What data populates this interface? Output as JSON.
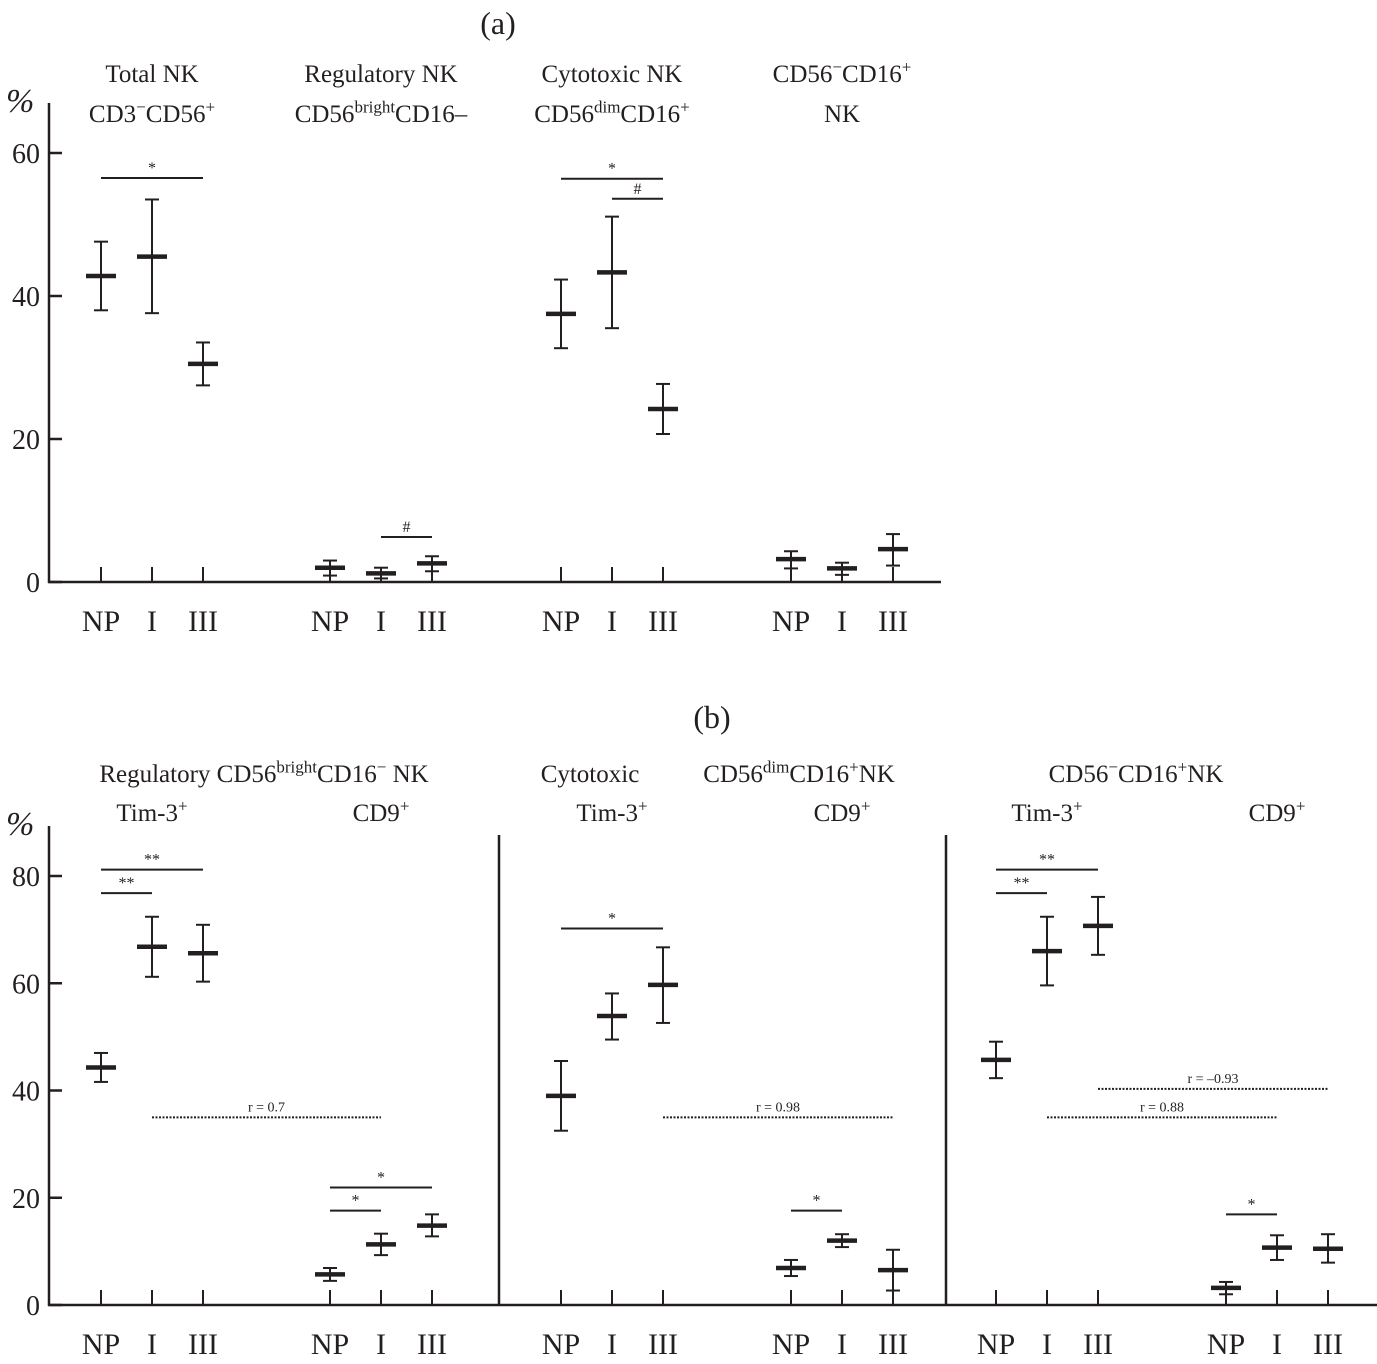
{
  "chart_data": [
    {
      "type": "errorbar",
      "panel_label": "(a)",
      "ylabel": "%",
      "ylim": [
        0,
        65
      ],
      "yticks": [
        0,
        20,
        40,
        60
      ],
      "categories": [
        "NP",
        "I",
        "III"
      ],
      "groups": [
        {
          "title_line1": "Total NK",
          "title_line2": {
            "parts": [
              {
                "t": "CD3"
              },
              {
                "t": "−",
                "sup": true
              },
              {
                "t": "CD56"
              },
              {
                "t": "+",
                "sup": true
              }
            ]
          },
          "points": [
            {
              "category": "NP",
              "mean": 42.8,
              "low": 38.0,
              "high": 47.6
            },
            {
              "category": "I",
              "mean": 45.5,
              "low": 37.6,
              "high": 53.5
            },
            {
              "category": "III",
              "mean": 30.5,
              "low": 27.5,
              "high": 33.5
            }
          ],
          "significance": [
            {
              "from": "NP",
              "to": "III",
              "label": "*",
              "y": 56.5
            }
          ]
        },
        {
          "title_line1": "Regulatory NK",
          "title_line2": {
            "parts": [
              {
                "t": "CD56"
              },
              {
                "t": "bright",
                "sup": true
              },
              {
                "t": "CD16–"
              }
            ]
          },
          "points": [
            {
              "category": "NP",
              "mean": 2.0,
              "low": 0.9,
              "high": 3.0
            },
            {
              "category": "I",
              "mean": 1.2,
              "low": 0.5,
              "high": 2.0
            },
            {
              "category": "III",
              "mean": 2.6,
              "low": 1.5,
              "high": 3.6
            }
          ],
          "significance": [
            {
              "from": "I",
              "to": "III",
              "label": "#",
              "y": 6.3
            }
          ]
        },
        {
          "title_line1": "Cytotoxic NK",
          "title_line2": {
            "parts": [
              {
                "t": "CD56"
              },
              {
                "t": "dim",
                "sup": true
              },
              {
                "t": "CD16"
              },
              {
                "t": "+",
                "sup": true
              }
            ]
          },
          "points": [
            {
              "category": "NP",
              "mean": 37.5,
              "low": 32.7,
              "high": 42.3
            },
            {
              "category": "I",
              "mean": 43.3,
              "low": 35.5,
              "high": 51.1
            },
            {
              "category": "III",
              "mean": 24.2,
              "low": 20.7,
              "high": 27.7
            }
          ],
          "significance": [
            {
              "from": "NP",
              "to": "III",
              "label": "*",
              "y": 56.4
            },
            {
              "from": "I",
              "to": "III",
              "label": "#",
              "y": 53.6
            }
          ]
        },
        {
          "title_line1": {
            "parts": [
              {
                "t": "CD56"
              },
              {
                "t": "−",
                "sup": true
              },
              {
                "t": "CD16"
              },
              {
                "t": "+",
                "sup": true
              }
            ]
          },
          "title_line2": "NK",
          "points": [
            {
              "category": "NP",
              "mean": 3.2,
              "low": 1.9,
              "high": 4.3
            },
            {
              "category": "I",
              "mean": 1.9,
              "low": 1.0,
              "high": 2.7
            },
            {
              "category": "III",
              "mean": 4.6,
              "low": 2.3,
              "high": 6.7
            }
          ],
          "significance": []
        }
      ]
    },
    {
      "type": "errorbar",
      "panel_label": "(b)",
      "ylabel": "%",
      "ylim": [
        0,
        89
      ],
      "yticks": [
        0,
        20,
        40,
        60,
        80
      ],
      "categories": [
        "NP",
        "I",
        "III"
      ],
      "sections": [
        {
          "title": {
            "parts": [
              {
                "t": "Regulatory CD56"
              },
              {
                "t": "bright",
                "sup": true
              },
              {
                "t": "CD16"
              },
              {
                "t": "−",
                "sup": true
              },
              {
                "t": " NK"
              }
            ]
          },
          "subgroups": [
            {
              "label": {
                "parts": [
                  {
                    "t": "Tim-3"
                  },
                  {
                    "t": "+",
                    "sup": true
                  }
                ]
              },
              "points": [
                {
                  "category": "NP",
                  "mean": 44.3,
                  "low": 41.6,
                  "high": 47.0
                },
                {
                  "category": "I",
                  "mean": 66.8,
                  "low": 61.2,
                  "high": 72.4
                },
                {
                  "category": "III",
                  "mean": 65.6,
                  "low": 60.3,
                  "high": 70.9
                }
              ],
              "significance": [
                {
                  "from": "NP",
                  "to": "III",
                  "label": "**",
                  "y": 81.2
                },
                {
                  "from": "NP",
                  "to": "I",
                  "label": "**",
                  "y": 76.8
                }
              ]
            },
            {
              "label": {
                "parts": [
                  {
                    "t": "CD9"
                  },
                  {
                    "t": "+",
                    "sup": true
                  }
                ]
              },
              "points": [
                {
                  "category": "NP",
                  "mean": 5.7,
                  "low": 4.5,
                  "high": 6.9
                },
                {
                  "category": "I",
                  "mean": 11.3,
                  "low": 9.3,
                  "high": 13.3
                },
                {
                  "category": "III",
                  "mean": 14.8,
                  "low": 12.8,
                  "high": 16.9
                }
              ],
              "significance": [
                {
                  "from": "NP",
                  "to": "III",
                  "label": "*",
                  "y": 21.9
                },
                {
                  "from": "NP",
                  "to": "I",
                  "label": "*",
                  "y": 17.6
                }
              ]
            }
          ],
          "correlations": [
            {
              "label": "r = 0.7",
              "from": "Tim-3 I",
              "to": "CD9 I",
              "y": 35.0
            }
          ]
        },
        {
          "title_left": "Cytotoxic",
          "title": {
            "parts": [
              {
                "t": "CD56"
              },
              {
                "t": "dim",
                "sup": true
              },
              {
                "t": "CD16"
              },
              {
                "t": "+",
                "sup": true
              },
              {
                "t": "NK"
              }
            ]
          },
          "subgroups": [
            {
              "label": {
                "parts": [
                  {
                    "t": "Tim-3"
                  },
                  {
                    "t": "+",
                    "sup": true
                  }
                ]
              },
              "points": [
                {
                  "category": "NP",
                  "mean": 39.0,
                  "low": 32.5,
                  "high": 45.5
                },
                {
                  "category": "I",
                  "mean": 53.9,
                  "low": 49.5,
                  "high": 58.1
                },
                {
                  "category": "III",
                  "mean": 59.7,
                  "low": 52.6,
                  "high": 66.7
                }
              ],
              "significance": [
                {
                  "from": "NP",
                  "to": "III",
                  "label": "*",
                  "y": 70.2
                }
              ]
            },
            {
              "label": {
                "parts": [
                  {
                    "t": "CD9"
                  },
                  {
                    "t": "+",
                    "sup": true
                  }
                ]
              },
              "points": [
                {
                  "category": "NP",
                  "mean": 6.9,
                  "low": 5.4,
                  "high": 8.4
                },
                {
                  "category": "I",
                  "mean": 12.0,
                  "low": 10.8,
                  "high": 13.2
                },
                {
                  "category": "III",
                  "mean": 6.5,
                  "low": 2.7,
                  "high": 10.3
                }
              ],
              "significance": [
                {
                  "from": "NP",
                  "to": "I",
                  "label": "*",
                  "y": 17.6
                }
              ]
            }
          ],
          "correlations": [
            {
              "label": "r = 0.98",
              "from": "Tim-3 III",
              "to": "CD9 III",
              "y": 35.0
            }
          ]
        },
        {
          "title": {
            "parts": [
              {
                "t": "CD56"
              },
              {
                "t": "−",
                "sup": true
              },
              {
                "t": "CD16"
              },
              {
                "t": "+",
                "sup": true
              },
              {
                "t": "NK"
              }
            ]
          },
          "subgroups": [
            {
              "label": {
                "parts": [
                  {
                    "t": "Tim-3"
                  },
                  {
                    "t": "+",
                    "sup": true
                  }
                ]
              },
              "points": [
                {
                  "category": "NP",
                  "mean": 45.7,
                  "low": 42.3,
                  "high": 49.1
                },
                {
                  "category": "I",
                  "mean": 66.0,
                  "low": 59.6,
                  "high": 72.4
                },
                {
                  "category": "III",
                  "mean": 70.7,
                  "low": 65.3,
                  "high": 76.1
                }
              ],
              "significance": [
                {
                  "from": "NP",
                  "to": "III",
                  "label": "**",
                  "y": 81.2
                },
                {
                  "from": "NP",
                  "to": "I",
                  "label": "**",
                  "y": 76.8
                }
              ]
            },
            {
              "label": {
                "parts": [
                  {
                    "t": "CD9"
                  },
                  {
                    "t": "+",
                    "sup": true
                  }
                ]
              },
              "points": [
                {
                  "category": "NP",
                  "mean": 3.2,
                  "low": 2.0,
                  "high": 4.3
                },
                {
                  "category": "I",
                  "mean": 10.7,
                  "low": 8.4,
                  "high": 13.0
                },
                {
                  "category": "III",
                  "mean": 10.5,
                  "low": 7.9,
                  "high": 13.2
                }
              ],
              "significance": [
                {
                  "from": "NP",
                  "to": "I",
                  "label": "*",
                  "y": 16.9
                }
              ]
            }
          ],
          "correlations": [
            {
              "label": "r = –0.93",
              "from": "Tim-3 III",
              "to": "CD9 III",
              "y": 40.3
            },
            {
              "label": "r = 0.88",
              "from": "Tim-3 I",
              "to": "CD9 I",
              "y": 35.0
            }
          ]
        }
      ]
    }
  ]
}
